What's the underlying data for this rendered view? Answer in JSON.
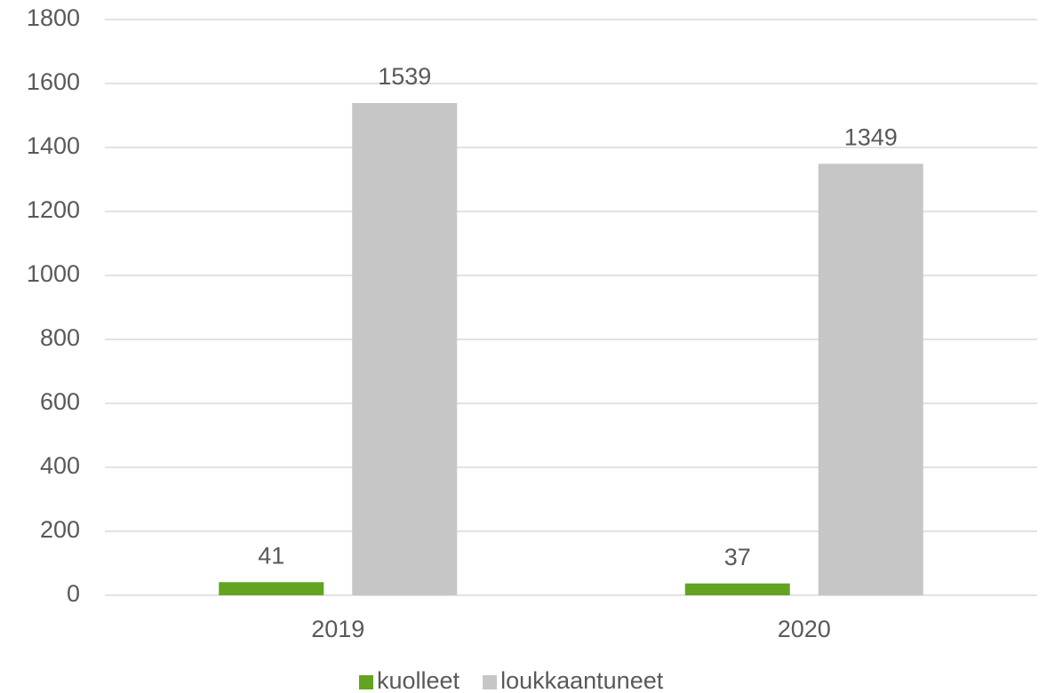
{
  "chart_data": {
    "type": "bar",
    "categories": [
      "2019",
      "2020"
    ],
    "series": [
      {
        "name": "kuolleet",
        "color": "#62a420",
        "values": [
          41,
          37
        ]
      },
      {
        "name": "loukkaantuneet",
        "color": "#c6c6c6",
        "values": [
          1539,
          1349
        ]
      }
    ],
    "ylim": [
      0,
      1800
    ],
    "yticks": [
      0,
      200,
      400,
      600,
      800,
      1000,
      1200,
      1400,
      1600,
      1800
    ],
    "grid": true,
    "legend": "bottom"
  }
}
